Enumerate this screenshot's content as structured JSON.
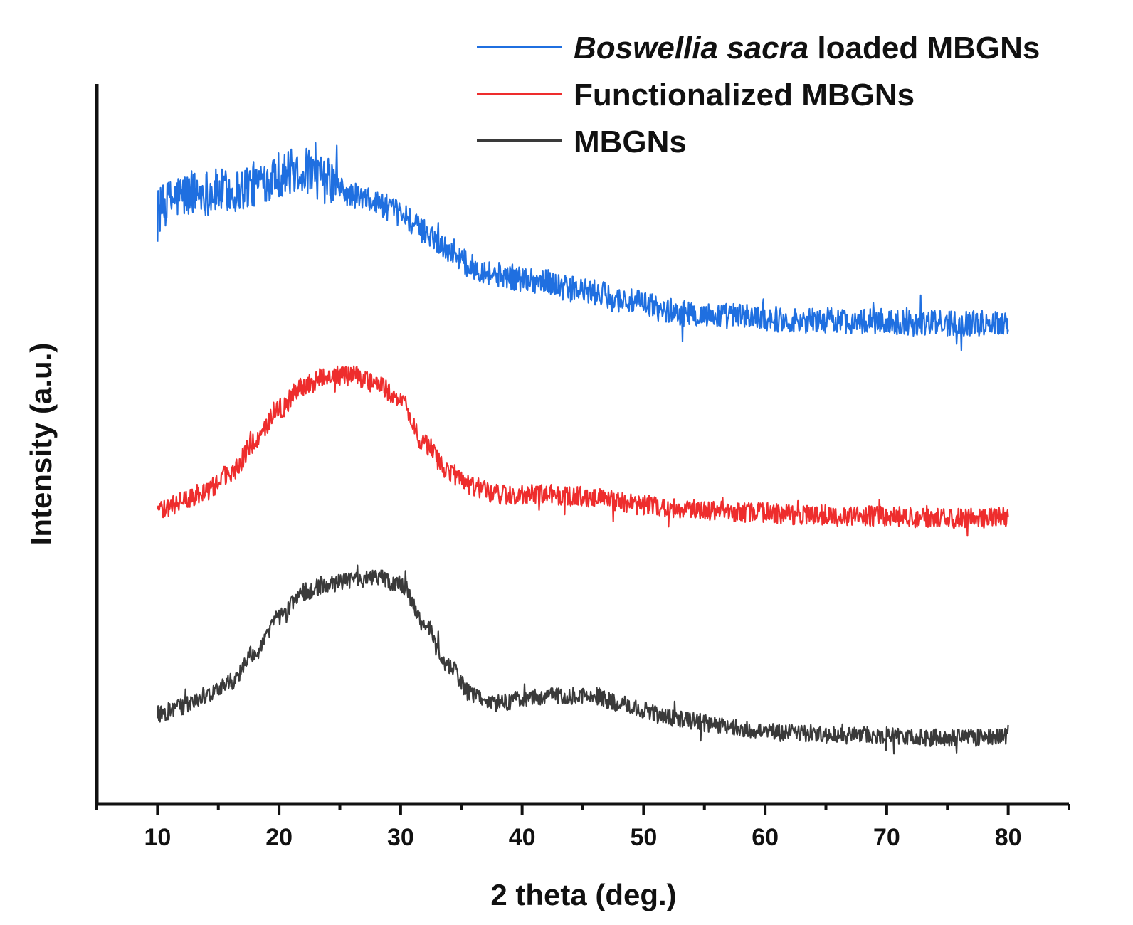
{
  "chart_data": {
    "type": "line",
    "title": "",
    "xlabel": "2 theta (deg.)",
    "ylabel": "Intensity (a.u.)",
    "xlim": [
      5,
      85
    ],
    "ylim": [
      0,
      10
    ],
    "y_ticks_shown": false,
    "x_ticks": [
      10,
      20,
      30,
      40,
      50,
      60,
      70,
      80
    ],
    "x_tick_labels": [
      "10",
      "20",
      "30",
      "40",
      "50",
      "60",
      "70",
      "80"
    ],
    "grid": false,
    "legend_position": "top-right",
    "series": [
      {
        "name": "Boswellia sacra loaded MBGNs",
        "legend_italic": "Boswellia sacra",
        "legend_rest": " loaded MBGNs",
        "color": "#1f6fe0",
        "noise": 0.18,
        "x": [
          10,
          12,
          14,
          16,
          18,
          20,
          22,
          24,
          26,
          28,
          30,
          32,
          34,
          36,
          38,
          40,
          42,
          44,
          46,
          48,
          50,
          52,
          54,
          56,
          58,
          60,
          62,
          64,
          66,
          68,
          70,
          72,
          74,
          76,
          78,
          80
        ],
        "y": [
          8.25,
          8.45,
          8.5,
          8.5,
          8.6,
          8.75,
          8.8,
          8.65,
          8.45,
          8.35,
          8.2,
          7.95,
          7.7,
          7.45,
          7.35,
          7.3,
          7.25,
          7.15,
          7.1,
          7.0,
          6.95,
          6.85,
          6.8,
          6.78,
          6.78,
          6.75,
          6.72,
          6.72,
          6.72,
          6.7,
          6.7,
          6.68,
          6.68,
          6.68,
          6.68,
          6.7
        ]
      },
      {
        "name": "Functionalized MBGNs",
        "color": "#ee2d2d",
        "noise": 0.14,
        "x": [
          10,
          12,
          14,
          16,
          18,
          20,
          22,
          24,
          26,
          28,
          30,
          32,
          34,
          36,
          38,
          40,
          42,
          44,
          46,
          48,
          50,
          52,
          54,
          56,
          58,
          60,
          62,
          64,
          66,
          68,
          70,
          72,
          74,
          76,
          78,
          80
        ],
        "y": [
          4.05,
          4.2,
          4.35,
          4.6,
          5.0,
          5.5,
          5.8,
          5.95,
          5.95,
          5.85,
          5.6,
          5.0,
          4.6,
          4.4,
          4.3,
          4.3,
          4.3,
          4.28,
          4.25,
          4.2,
          4.15,
          4.12,
          4.1,
          4.08,
          4.05,
          4.05,
          4.02,
          4.02,
          4.0,
          4.0,
          4.0,
          3.98,
          3.98,
          3.97,
          3.97,
          3.98
        ]
      },
      {
        "name": "MBGNs",
        "color": "#3a3a3a",
        "noise": 0.12,
        "x": [
          10,
          12,
          14,
          16,
          18,
          20,
          22,
          24,
          26,
          28,
          30,
          32,
          34,
          36,
          38,
          40,
          42,
          44,
          46,
          48,
          50,
          52,
          54,
          56,
          58,
          60,
          62,
          64,
          66,
          68,
          70,
          72,
          74,
          76,
          78,
          80
        ],
        "y": [
          1.25,
          1.35,
          1.5,
          1.7,
          2.1,
          2.6,
          2.95,
          3.05,
          3.1,
          3.15,
          3.05,
          2.5,
          1.9,
          1.5,
          1.4,
          1.45,
          1.5,
          1.5,
          1.5,
          1.4,
          1.3,
          1.2,
          1.15,
          1.1,
          1.05,
          1.0,
          1.0,
          0.98,
          0.95,
          0.95,
          0.95,
          0.93,
          0.92,
          0.92,
          0.92,
          0.93
        ]
      }
    ]
  }
}
